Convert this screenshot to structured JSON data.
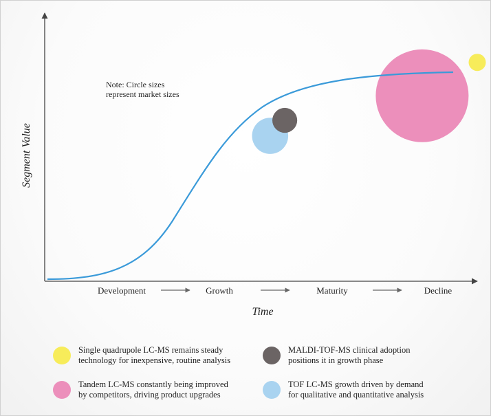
{
  "chart_data": {
    "type": "scatter",
    "title": "",
    "xlabel": "Time",
    "ylabel": "Segment Value",
    "stages": [
      "Development",
      "Growth",
      "Maturity",
      "Decline"
    ],
    "note": [
      "Note: Circle sizes",
      "represent market sizes"
    ],
    "curve": "S-shaped product life cycle curve",
    "series": [
      {
        "key": "single_quad",
        "stage_position": 3.37,
        "value": 0.97,
        "relative_size": 1.0,
        "color": "#f7ec5a",
        "legend": [
          "Single quadrupole LC-MS remains steady",
          "technology for inexpensive, routine analysis"
        ]
      },
      {
        "key": "maldi",
        "stage_position": 1.58,
        "value": 0.71,
        "relative_size": 1.45,
        "color": "#6b6464",
        "legend": [
          "MALDI-TOF-MS clinical adoption",
          "positions it in growth phase"
        ]
      },
      {
        "key": "tandem",
        "stage_position": 2.85,
        "value": 0.82,
        "relative_size": 5.4,
        "color": "#ec8fbb",
        "legend": [
          "Tandem LC-MS constantly being improved",
          "by competitors, driving product upgrades"
        ]
      },
      {
        "key": "tof",
        "stage_position": 1.45,
        "value": 0.64,
        "relative_size": 2.1,
        "color": "#a9d3f0",
        "legend": [
          "TOF LC-MS growth driven by demand",
          "for qualitative and quantitative analysis"
        ]
      }
    ],
    "colors": {
      "curve": "#3a9ad9",
      "axis": "#444444",
      "arrow": "#666666"
    }
  }
}
